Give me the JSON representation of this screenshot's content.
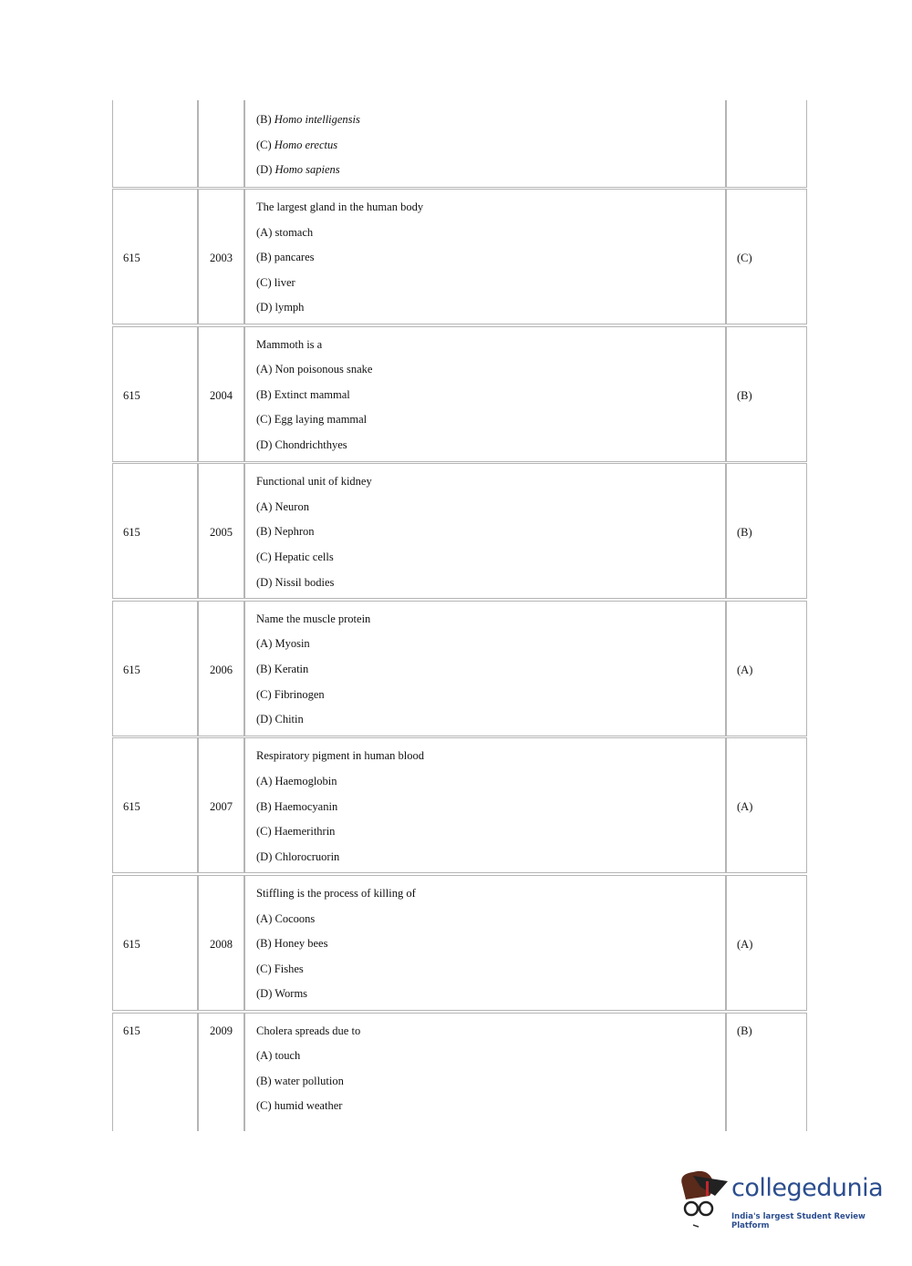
{
  "table": {
    "top_partial": {
      "options": [
        {
          "label": "(B)",
          "text": "Homo intelligensis"
        },
        {
          "label": "(C)",
          "text": "Homo erectus"
        },
        {
          "label": "(D)",
          "text": "Homo sapiens"
        }
      ]
    },
    "rows": [
      {
        "code": "615",
        "number": "2003",
        "question": "The largest gland in the human body",
        "options": [
          "(A) stomach",
          "(B) pancares",
          "(C) liver",
          "(D) lymph"
        ],
        "answer": "(C)"
      },
      {
        "code": "615",
        "number": "2004",
        "question": "Mammoth is a",
        "options": [
          "(A) Non poisonous snake",
          "(B) Extinct mammal",
          "(C) Egg laying mammal",
          "(D) Chondrichthyes"
        ],
        "answer": "(B)"
      },
      {
        "code": "615",
        "number": "2005",
        "question": "Functional unit of kidney",
        "options": [
          "(A) Neuron",
          "(B) Nephron",
          "(C) Hepatic cells",
          "(D) Nissil bodies"
        ],
        "answer": "(B)"
      },
      {
        "code": "615",
        "number": "2006",
        "question": "Name the muscle protein",
        "options": [
          "(A) Myosin",
          "(B) Keratin",
          "(C) Fibrinogen",
          "(D) Chitin"
        ],
        "answer": "(A)"
      },
      {
        "code": "615",
        "number": "2007",
        "question": "Respiratory pigment in human blood",
        "options": [
          "(A) Haemoglobin",
          "(B) Haemocyanin",
          "(C) Haemerithrin",
          "(D) Chlorocruorin"
        ],
        "answer": "(A)"
      },
      {
        "code": "615",
        "number": "2008",
        "question": "Stiffling is the process of killing of",
        "options": [
          "(A) Cocoons",
          "(B) Honey bees",
          "(C) Fishes",
          "(D) Worms"
        ],
        "answer": "(A)"
      },
      {
        "code": "615",
        "number": "2009",
        "question": "Cholera spreads due to",
        "options": [
          "(A) touch",
          "(B) water pollution",
          "(C) humid weather"
        ],
        "answer": "(B)"
      }
    ]
  },
  "footer": {
    "logo_text": "collegedunia",
    "logo_tagline": "India's largest Student Review Platform",
    "brand_color": "#2b4d8f"
  }
}
